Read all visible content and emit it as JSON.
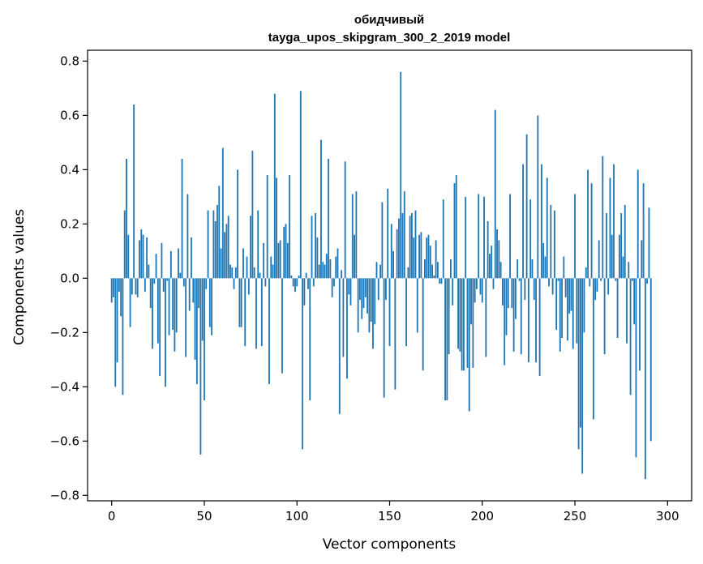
{
  "chart_data": {
    "type": "bar",
    "title": "обидчивый",
    "subtitle": "tayga_upos_skipgram_300_2_2019 model",
    "xlabel": "Vector components",
    "ylabel": "Components values",
    "xlim": [
      -13,
      313
    ],
    "ylim": [
      -0.82,
      0.84
    ],
    "xticks": [
      0,
      50,
      100,
      150,
      200,
      250,
      300
    ],
    "yticks": [
      -0.8,
      -0.6,
      -0.4,
      -0.2,
      0.0,
      0.2,
      0.4,
      0.6,
      0.8
    ],
    "ytick_labels": [
      "−0.8",
      "−0.6",
      "−0.4",
      "−0.2",
      "0.0",
      "0.2",
      "0.4",
      "0.6",
      "0.8"
    ],
    "bar_color": "#1f77b4",
    "grid": false,
    "values": [
      -0.09,
      -0.07,
      -0.4,
      -0.31,
      -0.05,
      -0.14,
      -0.43,
      0.25,
      0.44,
      0.16,
      -0.18,
      -0.06,
      0.64,
      -0.06,
      -0.07,
      0.14,
      0.18,
      0.16,
      -0.05,
      0.15,
      0.05,
      -0.11,
      -0.26,
      -0.02,
      0.09,
      -0.24,
      -0.36,
      0.13,
      -0.05,
      -0.4,
      -0.01,
      -0.21,
      0.1,
      -0.19,
      -0.27,
      -0.2,
      0.11,
      0.02,
      0.44,
      -0.03,
      -0.29,
      0.31,
      -0.12,
      0.15,
      -0.09,
      -0.3,
      -0.39,
      -0.11,
      -0.65,
      -0.23,
      -0.45,
      -0.04,
      0.25,
      -0.18,
      -0.21,
      0.25,
      0.21,
      0.27,
      0.34,
      0.11,
      0.48,
      0.17,
      0.2,
      0.23,
      0.05,
      0.04,
      -0.04,
      0.04,
      0.4,
      -0.18,
      -0.18,
      0.11,
      -0.25,
      0.08,
      -0.06,
      0.23,
      0.47,
      0.04,
      -0.26,
      0.25,
      0.02,
      -0.25,
      0.13,
      -0.03,
      0.38,
      -0.39,
      0.08,
      0.05,
      0.68,
      0.37,
      0.13,
      0.14,
      -0.35,
      0.19,
      0.2,
      0.13,
      0.38,
      0.01,
      -0.03,
      -0.05,
      -0.03,
      0.01,
      0.69,
      -0.63,
      -0.1,
      0.02,
      -0.04,
      -0.45,
      0.23,
      -0.03,
      0.24,
      0.15,
      0.05,
      0.51,
      0.06,
      0.05,
      0.09,
      0.44,
      0.07,
      -0.07,
      -0.03,
      0.08,
      0.11,
      -0.5,
      0.03,
      -0.29,
      0.43,
      -0.37,
      -0.06,
      -0.1,
      0.31,
      0.16,
      0.32,
      -0.2,
      -0.08,
      -0.15,
      -0.11,
      -0.07,
      -0.13,
      -0.2,
      -0.16,
      -0.26,
      -0.17,
      0.06,
      -0.08,
      0.05,
      0.28,
      -0.44,
      -0.08,
      0.33,
      -0.25,
      0.2,
      0.1,
      -0.41,
      0.18,
      0.22,
      0.76,
      0.24,
      0.32,
      -0.25,
      0.04,
      0.23,
      0.24,
      0.15,
      0.25,
      -0.2,
      0.16,
      0.17,
      -0.34,
      0.07,
      0.15,
      0.16,
      0.12,
      0.05,
      0.01,
      0.14,
      0.06,
      -0.02,
      -0.02,
      0.29,
      -0.45,
      -0.45,
      -0.28,
      0.07,
      -0.1,
      0.35,
      0.38,
      -0.26,
      -0.27,
      -0.34,
      -0.34,
      0.3,
      -0.33,
      -0.49,
      -0.17,
      -0.33,
      -0.09,
      -0.04,
      0.31,
      -0.06,
      -0.09,
      0.3,
      -0.29,
      0.21,
      0.09,
      0.12,
      -0.04,
      0.62,
      0.18,
      0.14,
      0.06,
      -0.1,
      -0.32,
      -0.21,
      -0.11,
      0.31,
      -0.11,
      -0.27,
      -0.15,
      0.07,
      -0.01,
      -0.28,
      0.42,
      -0.08,
      0.53,
      -0.31,
      0.29,
      0.07,
      -0.08,
      -0.31,
      0.6,
      -0.36,
      0.42,
      0.13,
      0.08,
      0.37,
      -0.03,
      0.27,
      -0.06,
      0.25,
      -0.19,
      -0.01,
      -0.27,
      -0.22,
      0.08,
      -0.07,
      -0.23,
      -0.13,
      -0.12,
      -0.26,
      0.31,
      -0.24,
      -0.63,
      -0.55,
      -0.72,
      -0.2,
      0.04,
      0.4,
      -0.03,
      0.35,
      -0.52,
      -0.08,
      -0.05,
      0.14,
      -0.01,
      0.45,
      -0.28,
      0.24,
      -0.06,
      0.37,
      0.16,
      0.42,
      -0.01,
      -0.22,
      0.16,
      0.24,
      0.08,
      0.27,
      -0.24,
      0.06,
      -0.43,
      -0.01,
      -0.17,
      -0.66,
      0.4,
      -0.34,
      0.14,
      0.35,
      -0.74,
      -0.02,
      0.26,
      -0.6
    ]
  }
}
